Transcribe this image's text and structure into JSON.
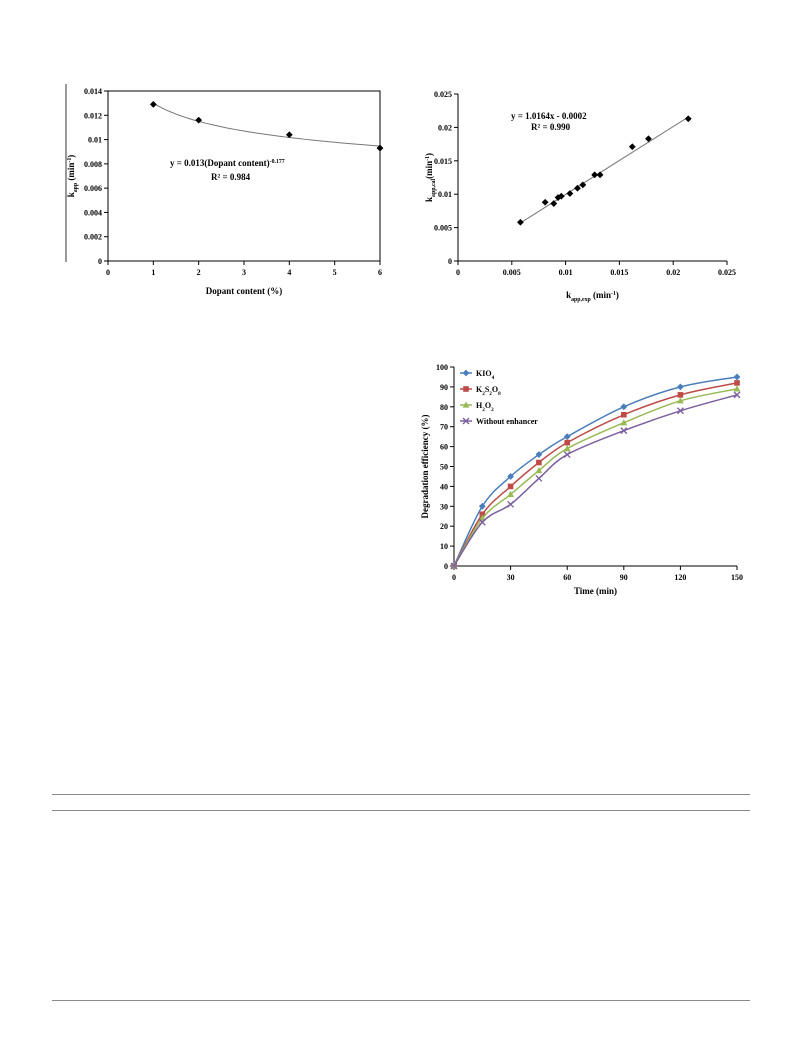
{
  "chart_data": [
    {
      "type": "scatter",
      "xlabel": "Dopant content (%)",
      "ylabel_main": "k",
      "ylabel_sub": "app",
      "ylabel_unit": " (min",
      "ylabel_sup": "-1",
      "ylabel_close": ")",
      "xlim": [
        0,
        6
      ],
      "ylim": [
        0,
        0.014
      ],
      "xticks": [
        "0",
        "1",
        "2",
        "3",
        "4",
        "5",
        "6"
      ],
      "yticks": [
        "0",
        "0.002",
        "0.004",
        "0.006",
        "0.008",
        "0.01",
        "0.012",
        "0.014"
      ],
      "points": [
        [
          1,
          0.0129
        ],
        [
          2,
          0.0116
        ],
        [
          4,
          0.0104
        ],
        [
          6,
          0.0093
        ]
      ],
      "fit": {
        "a": 0.013,
        "b": -0.177
      },
      "equation_main": "y = 0.013(Dopant content)",
      "equation_sup": "-0.177",
      "r2": "R² = 0.984",
      "grid": false,
      "legend": "none"
    },
    {
      "type": "scatter",
      "xlabel_main": "k",
      "xlabel_sub": "app,exp",
      "xlabel_unit": " (min",
      "xlabel_sup": "-1",
      "xlabel_close": ")",
      "ylabel_main": "k",
      "ylabel_sub": "app,cal",
      "ylabel_unit": "(min",
      "ylabel_sup": "-1",
      "ylabel_close": ")",
      "xlim": [
        0,
        0.025
      ],
      "ylim": [
        0,
        0.025
      ],
      "xticks": [
        "0",
        "0.005",
        "0.01",
        "0.015",
        "0.02",
        "0.025"
      ],
      "yticks": [
        "0",
        "0.005",
        "0.01",
        "0.015",
        "0.02",
        "0.025"
      ],
      "points": [
        [
          0.0058,
          0.0058
        ],
        [
          0.0081,
          0.0088
        ],
        [
          0.0089,
          0.0086
        ],
        [
          0.0093,
          0.0095
        ],
        [
          0.0096,
          0.0097
        ],
        [
          0.0104,
          0.0101
        ],
        [
          0.0111,
          0.0109
        ],
        [
          0.0116,
          0.0114
        ],
        [
          0.0127,
          0.0129
        ],
        [
          0.0132,
          0.0129
        ],
        [
          0.0162,
          0.0171
        ],
        [
          0.0177,
          0.0183
        ],
        [
          0.0214,
          0.0213
        ]
      ],
      "fit": {
        "slope": 1.0164,
        "intercept": -0.0002,
        "x_range": [
          0.0058,
          0.0214
        ]
      },
      "equation": "y = 1.0164x - 0.0002",
      "r2": "R² = 0.990",
      "grid": false,
      "legend": "none"
    },
    {
      "type": "line",
      "xlabel": "Time (min)",
      "ylabel": "Degradation efficiency (%)",
      "xlim": [
        0,
        150
      ],
      "ylim": [
        0,
        100
      ],
      "xticks": [
        "0",
        "30",
        "60",
        "90",
        "120",
        "150"
      ],
      "yticks": [
        "0",
        "10",
        "20",
        "30",
        "40",
        "50",
        "60",
        "70",
        "80",
        "90",
        "100"
      ],
      "x": [
        0,
        15,
        30,
        45,
        60,
        90,
        120,
        150
      ],
      "series": [
        {
          "name": "KIO4",
          "label_parts": [
            [
              "KIO",
              ""
            ],
            [
              "4",
              "sub"
            ]
          ],
          "color": "#4a7ebb",
          "marker": "diamond",
          "values": [
            0,
            30,
            45,
            56,
            65,
            80,
            90,
            95
          ]
        },
        {
          "name": "K2S2O8",
          "label_parts": [
            [
              "K",
              ""
            ],
            [
              "2",
              "sub"
            ],
            [
              "S",
              ""
            ],
            [
              "2",
              "sub"
            ],
            [
              "O",
              ""
            ],
            [
              "8",
              "sub"
            ]
          ],
          "color": "#be4b48",
          "marker": "square",
          "values": [
            0,
            26,
            40,
            52,
            62,
            76,
            86,
            92
          ]
        },
        {
          "name": "H2O2",
          "label_parts": [
            [
              "H",
              ""
            ],
            [
              "2",
              "sub"
            ],
            [
              "O",
              ""
            ],
            [
              "2",
              "sub"
            ]
          ],
          "color": "#98b954",
          "marker": "triangle",
          "values": [
            0,
            24,
            36,
            48,
            59,
            72,
            83,
            89
          ]
        },
        {
          "name": "Without enhancer",
          "label_parts": [
            [
              "Without enhancer",
              ""
            ]
          ],
          "color": "#7d60a0",
          "marker": "x",
          "values": [
            0,
            22,
            31,
            44,
            56,
            68,
            78,
            86
          ]
        }
      ],
      "grid": false,
      "legend": "top-left"
    }
  ]
}
